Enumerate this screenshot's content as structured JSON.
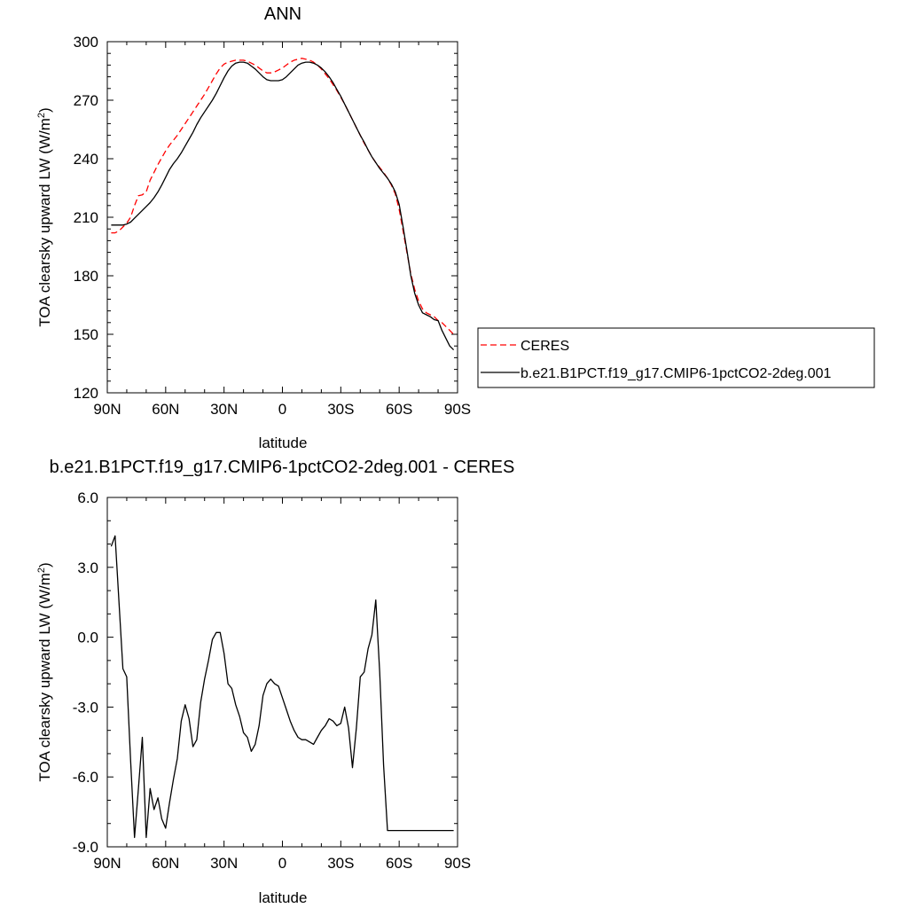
{
  "chart_data": [
    {
      "type": "line",
      "title": "ANN",
      "xlabel": "latitude",
      "ylabel_main": "TOA clearsky upward LW (W/m",
      "ylabel_sup": "2",
      "ylabel_close": ")",
      "xlim": [
        90,
        -90
      ],
      "ylim": [
        120,
        300
      ],
      "xticks": [
        90,
        60,
        30,
        0,
        -30,
        -60,
        -90
      ],
      "xtick_labels": [
        "90N",
        "60N",
        "30N",
        "0",
        "30S",
        "60S",
        "90S"
      ],
      "yticks": [
        120,
        150,
        180,
        210,
        240,
        270,
        300
      ],
      "ytick_labels": [
        "120",
        "150",
        "180",
        "210",
        "240",
        "270",
        "300"
      ],
      "legend_position": "right",
      "series": [
        {
          "name": "CERES",
          "color": "#ff0000",
          "style": "dashed",
          "x": [
            88,
            86,
            84,
            82,
            80,
            78,
            76,
            74,
            72,
            70,
            68,
            66,
            64,
            62,
            60,
            58,
            56,
            54,
            52,
            50,
            48,
            46,
            44,
            42,
            40,
            38,
            36,
            34,
            32,
            30,
            28,
            26,
            24,
            22,
            20,
            18,
            16,
            14,
            12,
            10,
            8,
            6,
            4,
            2,
            0,
            -2,
            -4,
            -6,
            -8,
            -10,
            -12,
            -14,
            -16,
            -18,
            -20,
            -22,
            -24,
            -26,
            -28,
            -30,
            -32,
            -34,
            -36,
            -38,
            -40,
            -42,
            -44,
            -46,
            -48,
            -50,
            -52,
            -54,
            -56,
            -58,
            -60,
            -62,
            -64,
            -66,
            -68,
            -70,
            -72,
            -74,
            -76,
            -78,
            -80,
            -82,
            -84,
            -86,
            -88
          ],
          "y": [
            202,
            202,
            203,
            205,
            207,
            210,
            216,
            221,
            221.5,
            223,
            229,
            233,
            237,
            240.5,
            244,
            247,
            249.5,
            252,
            255,
            258,
            261,
            264,
            267,
            270,
            273,
            276.5,
            280,
            283.5,
            286.5,
            288.5,
            289.5,
            290,
            290.5,
            290.5,
            290.5,
            290,
            289,
            288,
            286.5,
            285,
            284,
            284,
            284.5,
            285.5,
            286.5,
            288,
            289.5,
            290.5,
            291,
            291.5,
            291,
            290.5,
            289.5,
            288,
            286,
            283.5,
            281,
            278,
            275,
            271.5,
            268,
            264,
            260,
            256,
            252,
            248,
            244.5,
            241,
            238,
            235.5,
            233,
            230,
            226.5,
            222,
            214,
            203,
            192,
            181,
            173,
            167,
            163,
            161,
            160,
            159,
            157,
            156,
            154,
            152,
            150
          ]
        },
        {
          "name": "b.e21.B1PCT.f19_g17.CMIP6-1pctCO2-2deg.001",
          "color": "#000000",
          "style": "solid",
          "x": [
            88,
            86,
            84,
            82,
            80,
            78,
            76,
            74,
            72,
            70,
            68,
            66,
            64,
            62,
            60,
            58,
            56,
            54,
            52,
            50,
            48,
            46,
            44,
            42,
            40,
            38,
            36,
            34,
            32,
            30,
            28,
            26,
            24,
            22,
            20,
            18,
            16,
            14,
            12,
            10,
            8,
            6,
            4,
            2,
            0,
            -2,
            -4,
            -6,
            -8,
            -10,
            -12,
            -14,
            -16,
            -18,
            -20,
            -22,
            -24,
            -26,
            -28,
            -30,
            -32,
            -34,
            -36,
            -38,
            -40,
            -42,
            -44,
            -46,
            -48,
            -50,
            -52,
            -54,
            -56,
            -58,
            -60,
            -62,
            -64,
            -66,
            -68,
            -70,
            -72,
            -74,
            -76,
            -78,
            -80,
            -82,
            -84,
            -86,
            -88
          ],
          "y": [
            206,
            206,
            206,
            206,
            206.5,
            207.5,
            209.5,
            211.5,
            213.5,
            215.5,
            217.5,
            220,
            223,
            226.5,
            230.5,
            234.5,
            237.5,
            240,
            243,
            246.5,
            250,
            253.5,
            257.5,
            261,
            264,
            267,
            270,
            273.5,
            277.5,
            281.5,
            285,
            287.5,
            289,
            289.5,
            289.5,
            289,
            287.5,
            286,
            284,
            282,
            280.5,
            280,
            280,
            280,
            280.5,
            282,
            284,
            286,
            288,
            289,
            289.5,
            289.5,
            289,
            288,
            286.5,
            284.5,
            282,
            279,
            275.5,
            272,
            268,
            264,
            260,
            256,
            252,
            248.5,
            244.5,
            241,
            238,
            235,
            232.5,
            230,
            227,
            223,
            216.5,
            205,
            193,
            180,
            171,
            165,
            161,
            160,
            159,
            157.5,
            157,
            152,
            148,
            144,
            142
          ]
        }
      ]
    },
    {
      "type": "line",
      "title": "b.e21.B1PCT.f19_g17.CMIP6-1pctCO2-2deg.001 - CERES",
      "xlabel": "latitude",
      "ylabel_main": "TOA clearsky upward LW (W/m",
      "ylabel_sup": "2",
      "ylabel_close": ")",
      "xlim": [
        90,
        -90
      ],
      "ylim": [
        -9,
        6
      ],
      "xticks": [
        90,
        60,
        30,
        0,
        -30,
        -60,
        -90
      ],
      "xtick_labels": [
        "90N",
        "60N",
        "30N",
        "0",
        "30S",
        "60S",
        "90S"
      ],
      "yticks": [
        -9,
        -6,
        -3,
        0,
        3,
        6
      ],
      "ytick_labels": [
        "-9.0",
        "-6.0",
        "-3.0",
        "0.0",
        "3.0",
        "6.0"
      ],
      "series": [
        {
          "color": "#000000",
          "style": "solid",
          "x": [
            88,
            86,
            84,
            82,
            80,
            78,
            76,
            74,
            72,
            70,
            68,
            66,
            64,
            62,
            60,
            58,
            56,
            54,
            52,
            50,
            48,
            46,
            44,
            42,
            40,
            38,
            36,
            34,
            32,
            30,
            28,
            26,
            24,
            22,
            20,
            18,
            16,
            14,
            12,
            10,
            8,
            6,
            4,
            2,
            0,
            -2,
            -4,
            -6,
            -8,
            -10,
            -12,
            -14,
            -16,
            -18,
            -20,
            -22,
            -24,
            -26,
            -28,
            -30,
            -32,
            -34,
            -36,
            -38,
            -40,
            -42,
            -44,
            -46,
            -48,
            -50,
            -52,
            -54,
            -56,
            -58,
            -60,
            -62,
            -64,
            -66,
            -68,
            -70,
            -72,
            -74,
            -76,
            -78,
            -80,
            -82,
            -84,
            -86,
            -88
          ],
          "y": [
            3.9,
            4.35,
            1.5,
            -1.35,
            -1.7,
            -5.3,
            -8.6,
            -6.5,
            -4.3,
            -8.6,
            -6.5,
            -7.4,
            -6.9,
            -7.8,
            -8.2,
            -7.1,
            -6.1,
            -5.2,
            -3.6,
            -2.9,
            -3.5,
            -4.7,
            -4.4,
            -2.8,
            -1.8,
            -1.0,
            -0.1,
            0.2,
            0.2,
            -0.7,
            -2.0,
            -2.2,
            -2.9,
            -3.4,
            -4.1,
            -4.3,
            -4.9,
            -4.6,
            -3.8,
            -2.5,
            -2.0,
            -1.8,
            -2.0,
            -2.1,
            -2.6,
            -3.1,
            -3.6,
            -4.0,
            -4.3,
            -4.4,
            -4.4,
            -4.5,
            -4.6,
            -4.3,
            -4.0,
            -3.8,
            -3.5,
            -3.6,
            -3.8,
            -3.7,
            -3.0,
            -3.9,
            -5.6,
            -3.9,
            -1.7,
            -1.5,
            -0.5,
            0.1,
            1.6,
            -1.5,
            -5.5,
            -8.3,
            -8.3,
            -8.3,
            -8.3,
            -8.3,
            -8.3,
            -8.3,
            -8.3,
            -8.3,
            -8.3,
            -8.3,
            -8.3,
            -8.3,
            -8.3,
            -8.3,
            -8.3,
            -8.3,
            -8.3
          ]
        }
      ]
    }
  ]
}
